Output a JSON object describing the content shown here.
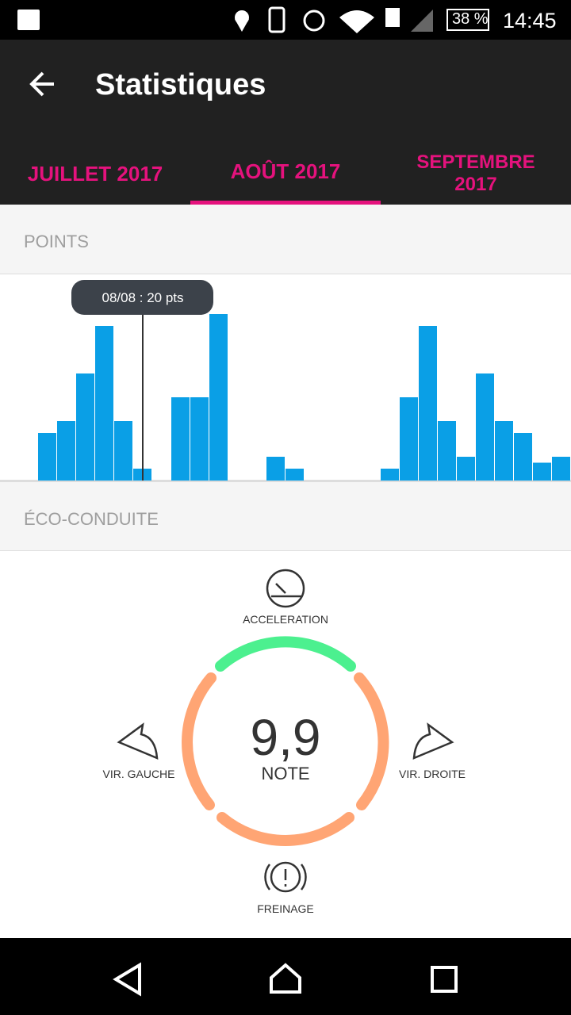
{
  "status_bar": {
    "battery": "38 %",
    "time": "14:45"
  },
  "header": {
    "title": "Statistiques"
  },
  "tabs": [
    "JUILLET 2017",
    "AOÛT 2017",
    "SEPTEMBRE 2017"
  ],
  "points_section": {
    "title": "POINTS"
  },
  "chart_data": {
    "type": "bar",
    "values": [
      0,
      0,
      80,
      100,
      180,
      260,
      100,
      20,
      0,
      140,
      140,
      280,
      0,
      0,
      40,
      20,
      0,
      0,
      0,
      0,
      20,
      140,
      260,
      100,
      40,
      180,
      100,
      80,
      30,
      40
    ],
    "color": "#0a9fe6",
    "ylim": [
      0,
      340
    ],
    "tooltip": "08/08 : 20 pts"
  },
  "eco_section": {
    "title": "ÉCO-CONDUITE",
    "score": "9,9",
    "score_label": "NOTE",
    "acceleration": "ACCELERATION",
    "left_turn": "VIR. GAUCHE",
    "right_turn": "VIR. DROITE",
    "braking": "FREINAGE"
  }
}
